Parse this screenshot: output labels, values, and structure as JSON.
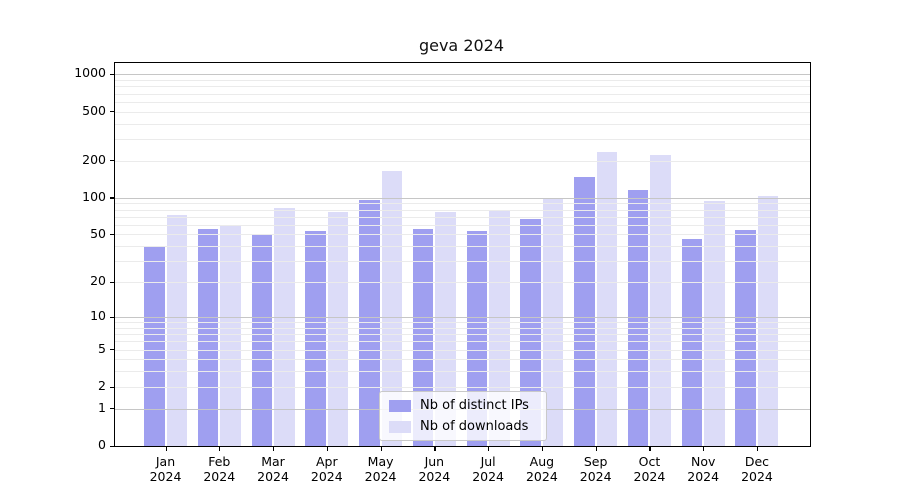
{
  "chart_data": {
    "type": "bar",
    "title": "geva 2024",
    "year": "2024",
    "months": [
      "Jan",
      "Feb",
      "Mar",
      "Apr",
      "May",
      "Jun",
      "Jul",
      "Aug",
      "Sep",
      "Oct",
      "Nov",
      "Dec"
    ],
    "series": [
      {
        "name": "Nb of distinct IPs",
        "color": "#9f9ff0",
        "values": [
          40,
          56,
          50,
          53,
          95,
          55,
          53,
          67,
          147,
          115,
          46,
          54
        ]
      },
      {
        "name": "Nb of downloads",
        "color": "#dcdcf8",
        "values": [
          72,
          60,
          82,
          76,
          165,
          76,
          79,
          97,
          236,
          223,
          94,
          104
        ]
      }
    ],
    "yscale": "log1p",
    "yticks": [
      0,
      1,
      2,
      5,
      10,
      20,
      50,
      100,
      200,
      500,
      1000
    ],
    "minor_gridlines": [
      2,
      3,
      4,
      5,
      6,
      7,
      8,
      9,
      20,
      30,
      40,
      50,
      60,
      70,
      80,
      90,
      200,
      300,
      400,
      500,
      600,
      700,
      800,
      900
    ],
    "major_gridlines": [
      1,
      10,
      100,
      1000
    ],
    "ylim": [
      0,
      1235
    ],
    "xlabel": "",
    "ylabel": "",
    "grid": true,
    "legend_position": "lower center",
    "colors": {
      "background": "#ffffff",
      "axis": "#000000",
      "major_grid": "#c6c6c6",
      "minor_grid": "#ebebeb",
      "title_text": "#111111"
    }
  }
}
